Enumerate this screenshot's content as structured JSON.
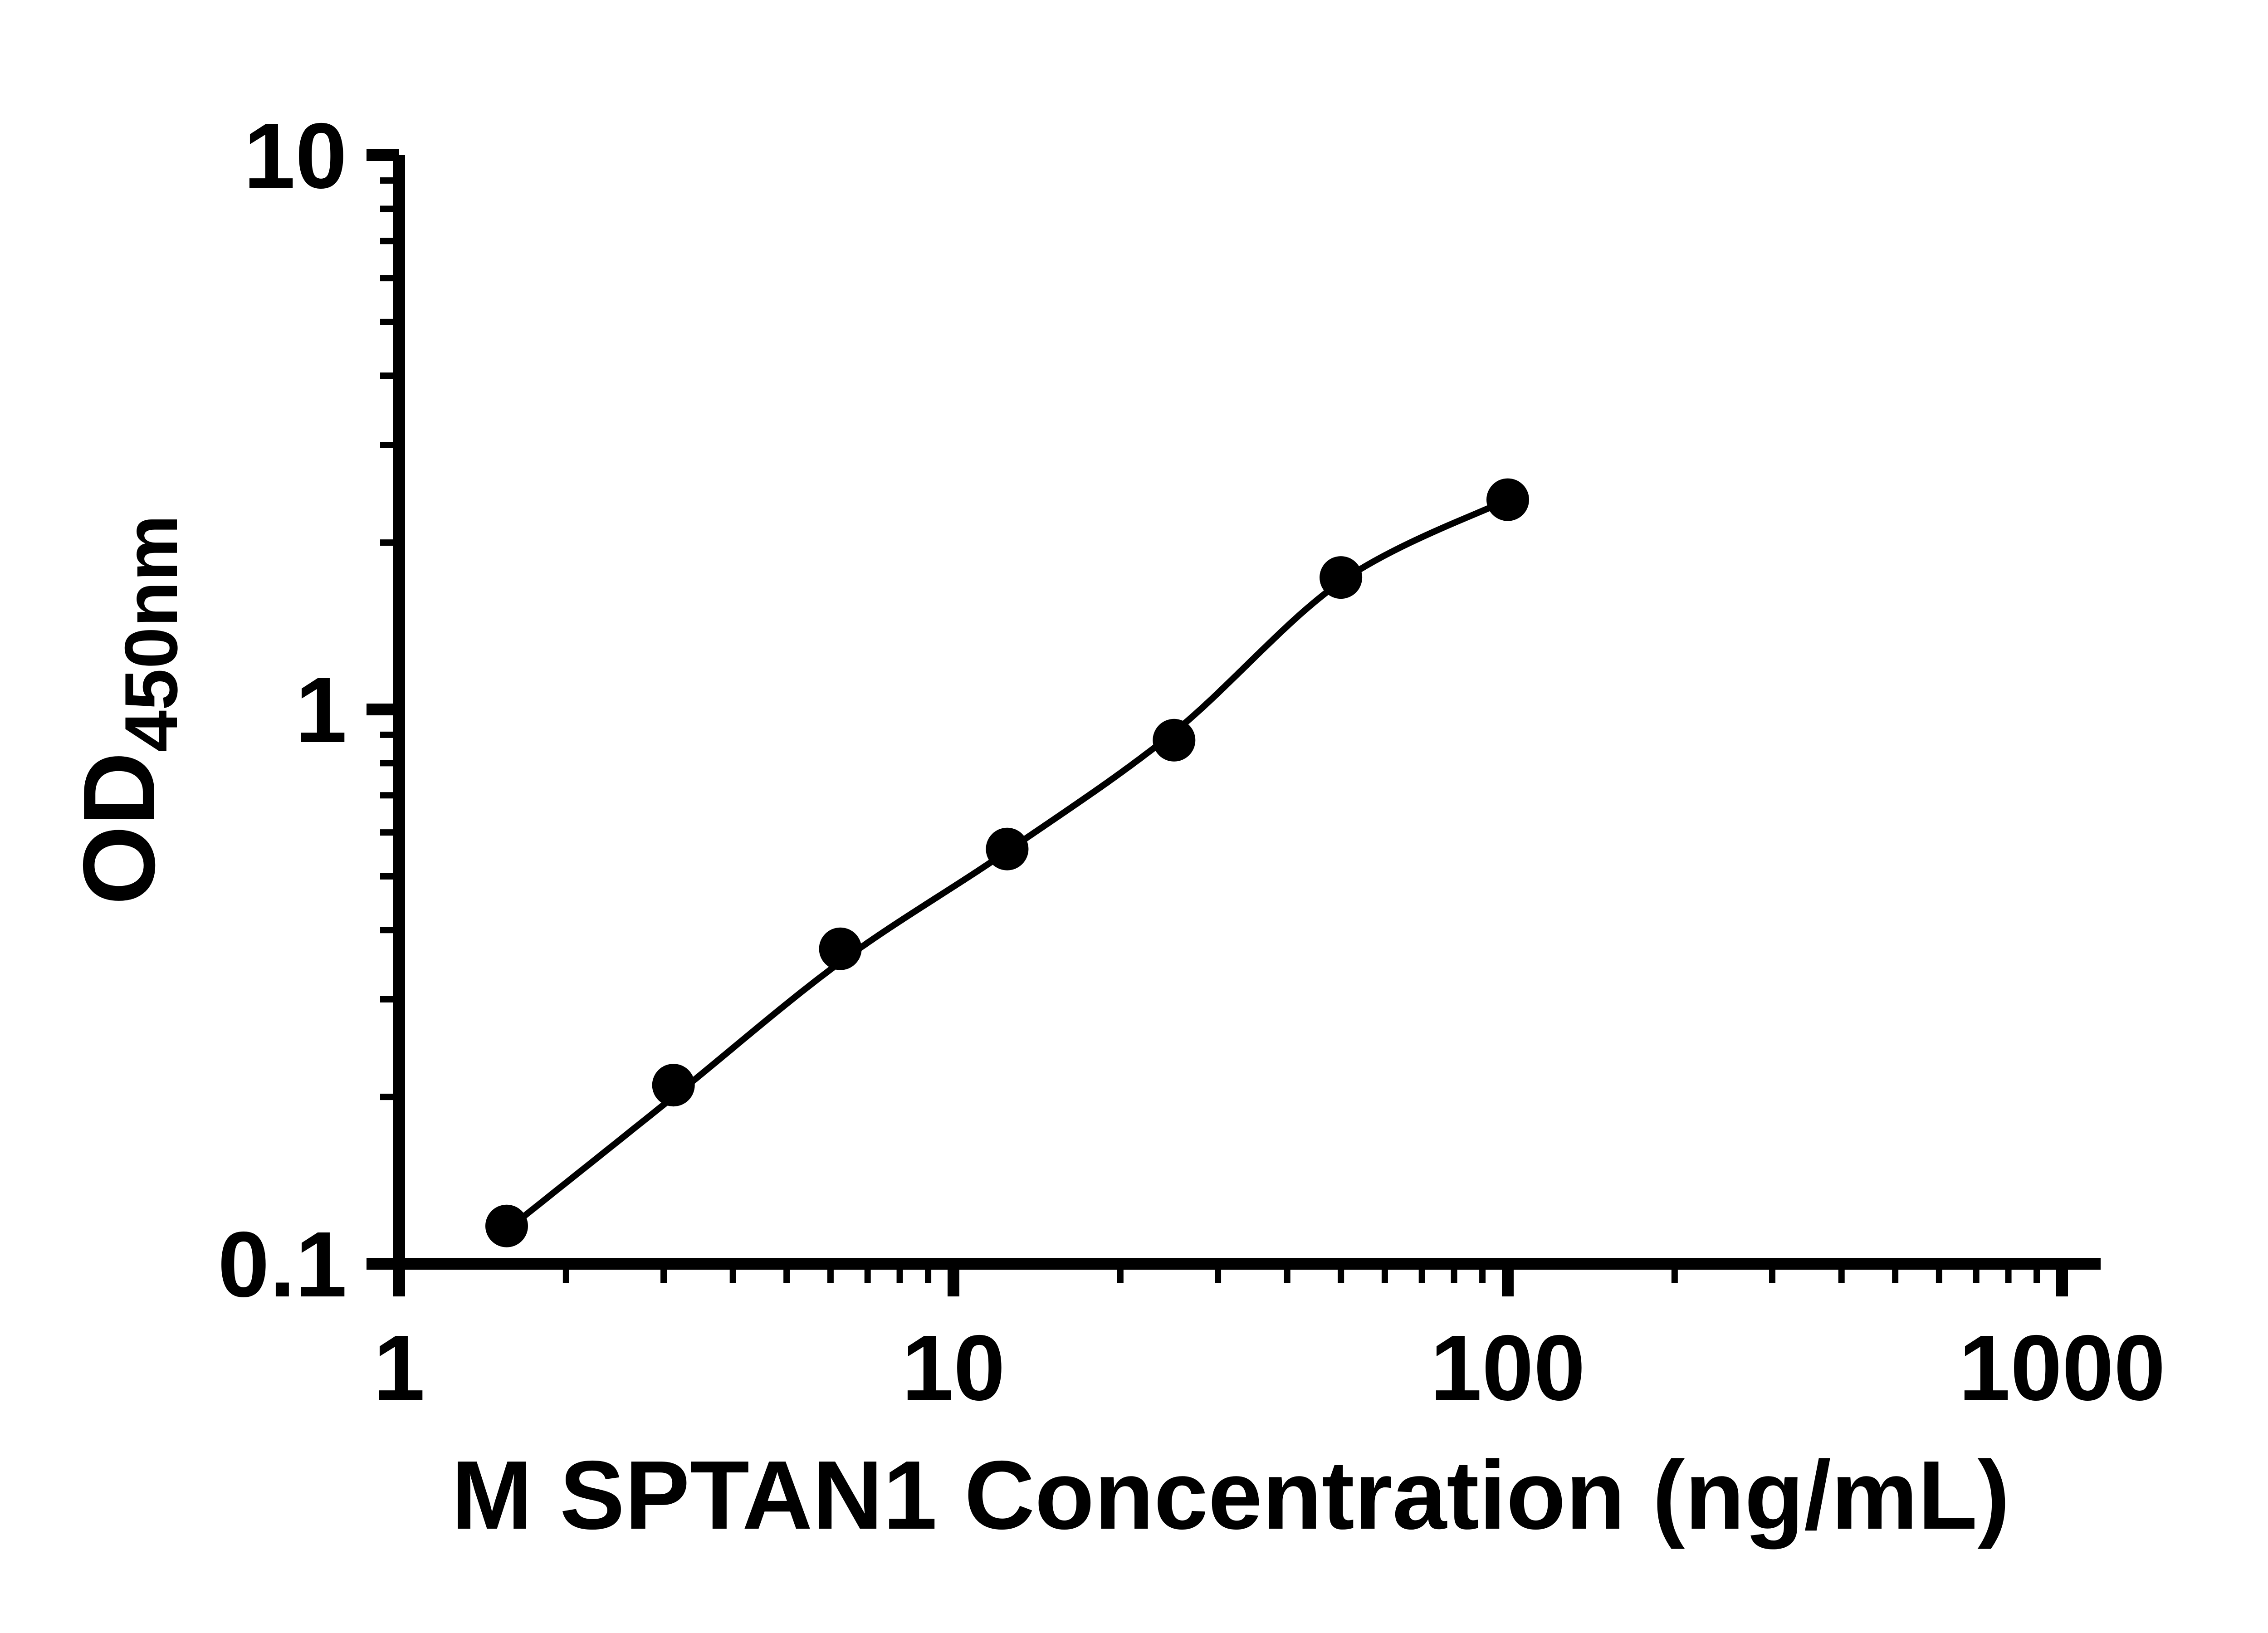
{
  "chart_data": {
    "type": "scatter",
    "title": "",
    "x_label": "M SPTAN1 Concentration (ng/mL)",
    "y_label_main": "OD",
    "y_label_sub": "450nm",
    "x_scale": "log",
    "y_scale": "log",
    "x_range": [
      1,
      1000
    ],
    "y_range": [
      0.1,
      10
    ],
    "x_tick_labels": [
      "1",
      "10",
      "100",
      "1000"
    ],
    "y_tick_labels": [
      "0.1",
      "1",
      "10"
    ],
    "grid": false,
    "legend": false,
    "points": [
      {
        "x": 1.563,
        "y": 0.117
      },
      {
        "x": 3.125,
        "y": 0.21
      },
      {
        "x": 6.25,
        "y": 0.37
      },
      {
        "x": 12.5,
        "y": 0.56
      },
      {
        "x": 25,
        "y": 0.88
      },
      {
        "x": 50,
        "y": 1.73
      },
      {
        "x": 100,
        "y": 2.39
      }
    ],
    "fit_curve_anchors": [
      {
        "x": 1.563,
        "y": 0.115
      },
      {
        "x": 3.125,
        "y": 0.2
      },
      {
        "x": 6.25,
        "y": 0.35
      },
      {
        "x": 12.5,
        "y": 0.555
      },
      {
        "x": 25,
        "y": 0.91
      },
      {
        "x": 50,
        "y": 1.7
      },
      {
        "x": 100,
        "y": 2.39
      }
    ],
    "colors": {
      "points": "#000000",
      "curve": "#000000",
      "axis": "#000000",
      "background": "#ffffff"
    }
  }
}
